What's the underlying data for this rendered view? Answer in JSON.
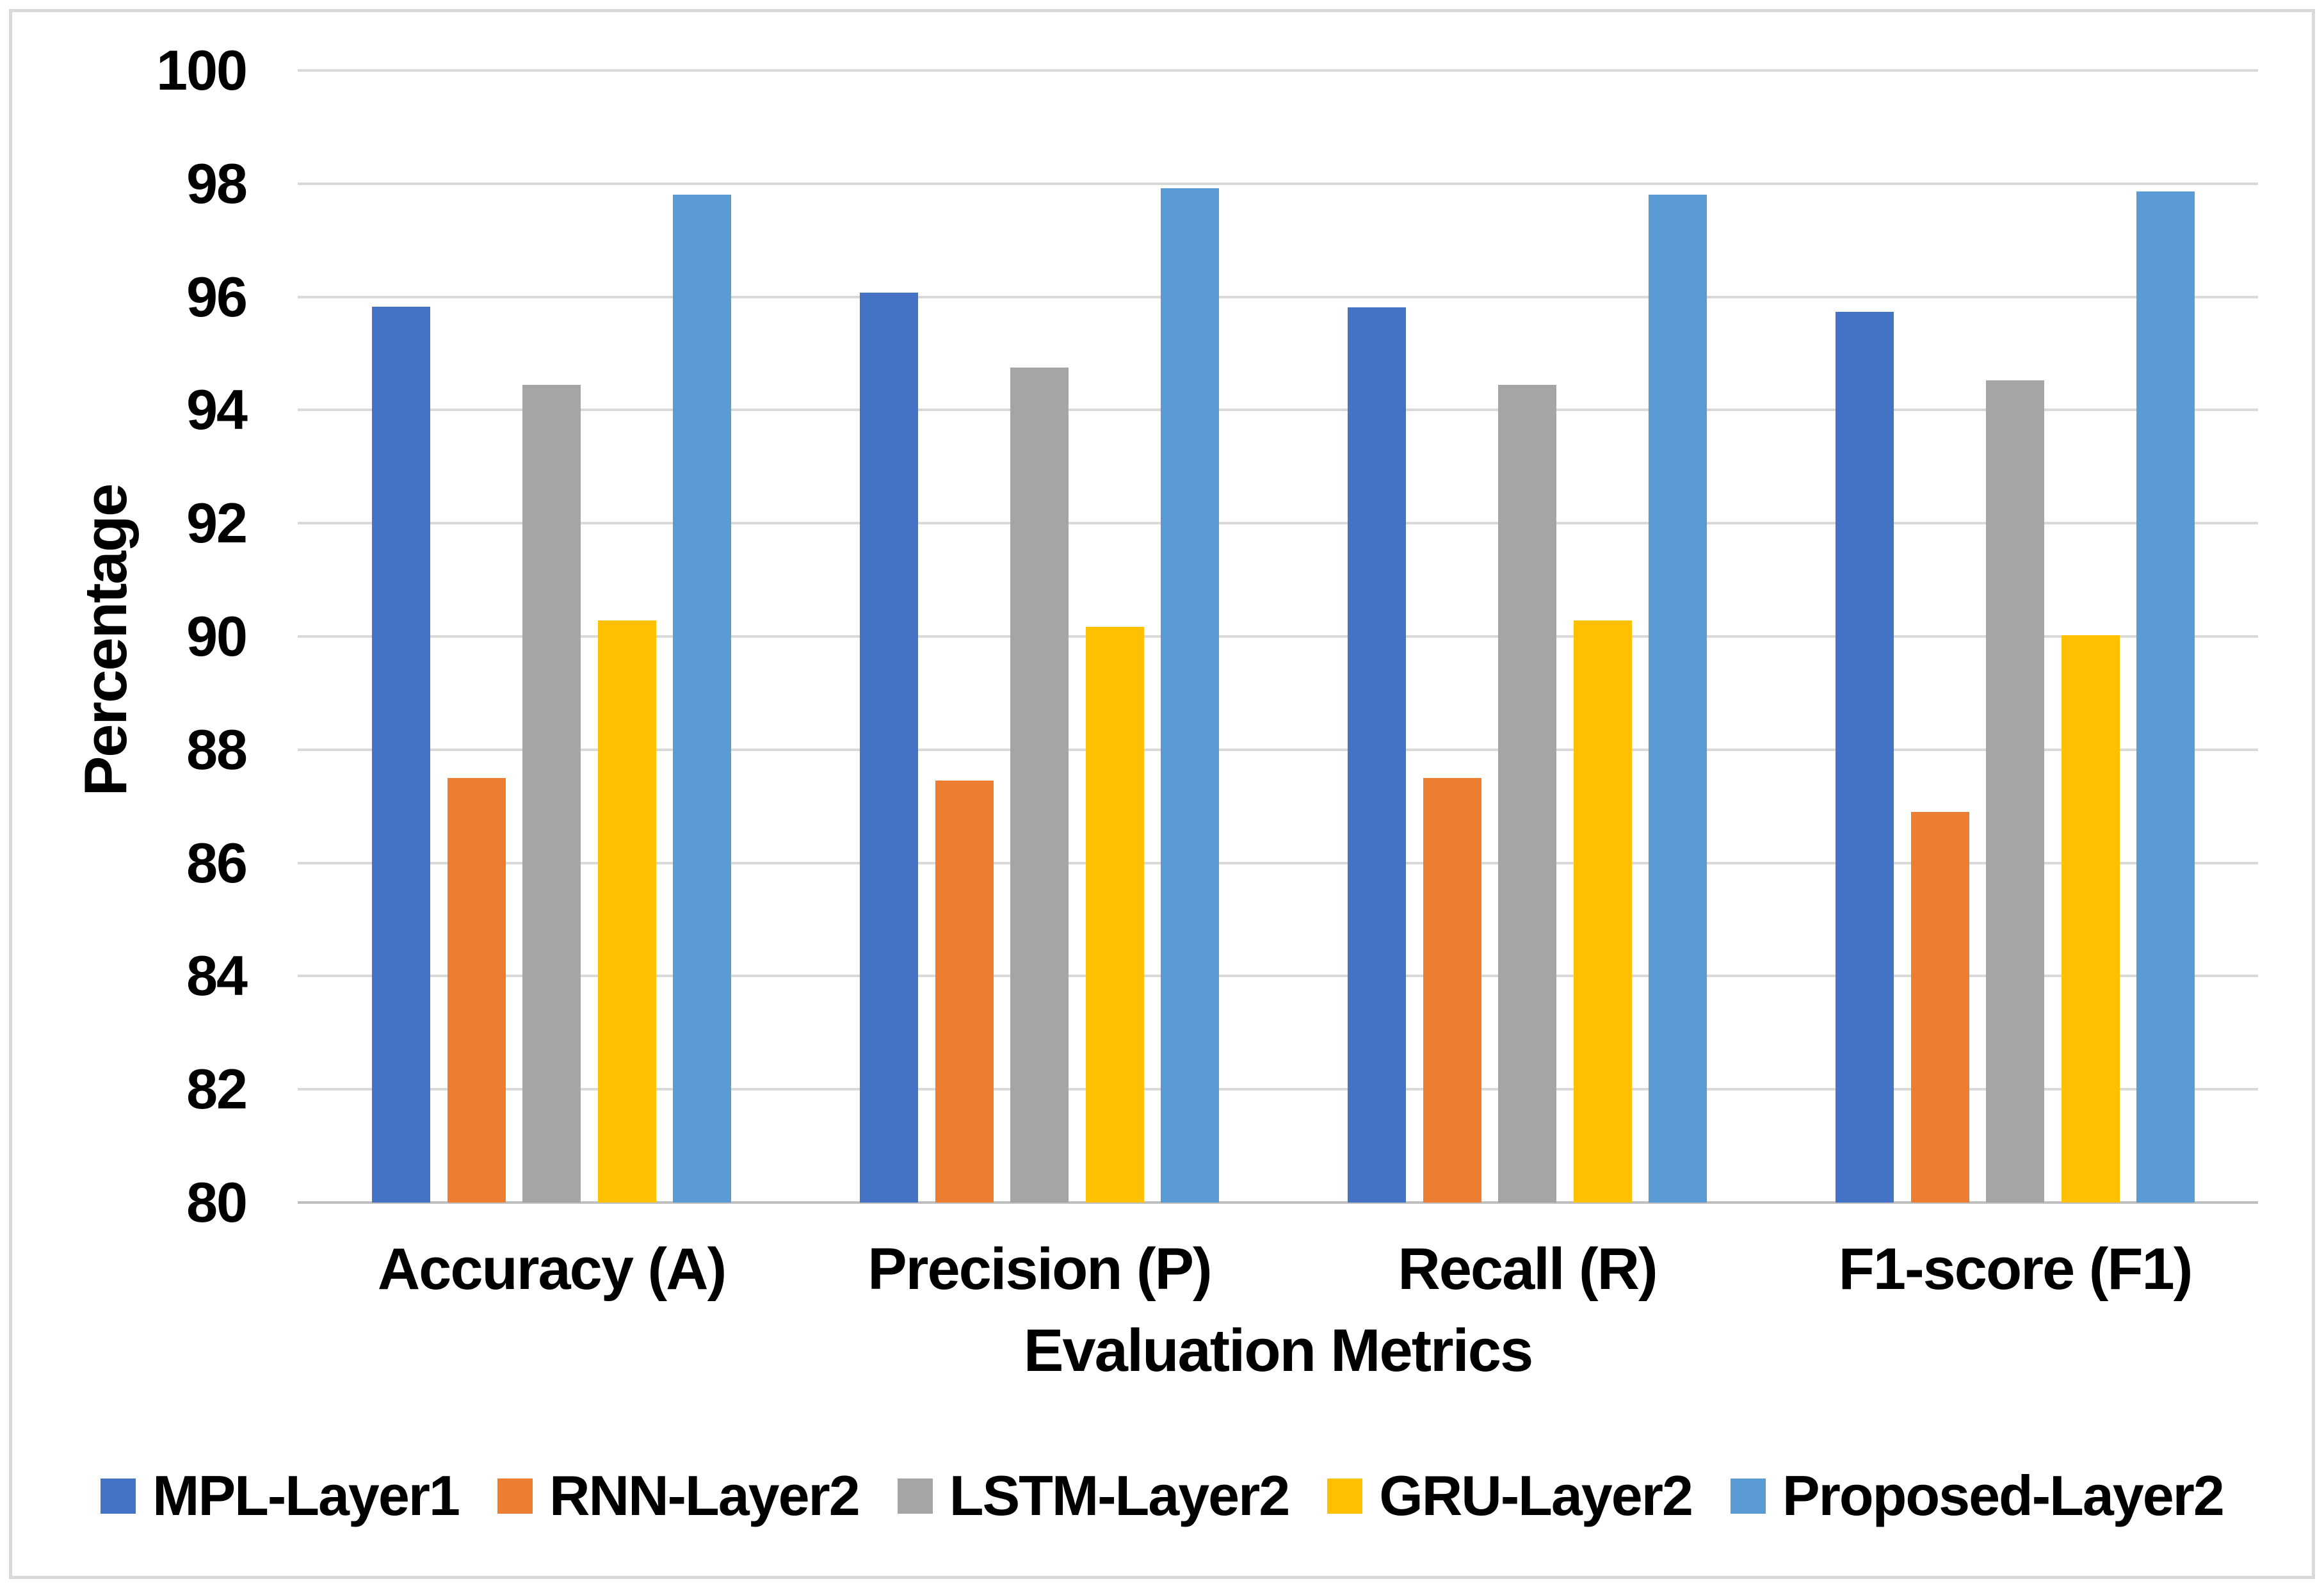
{
  "chart_data": {
    "type": "bar",
    "title": "",
    "categories": [
      "Accuracy (A)",
      "Precision (P)",
      "Recall (R)",
      "F1-score (F1)"
    ],
    "series": [
      {
        "name": "MPL-Layer1",
        "color": "#4472C4",
        "values": [
          95.83,
          96.07,
          95.82,
          95.73
        ]
      },
      {
        "name": "RNN-Layer2",
        "color": "#ED7D31",
        "values": [
          87.5,
          87.45,
          87.5,
          86.9
        ]
      },
      {
        "name": "LSTM-Layer2",
        "color": "#A5A5A5",
        "values": [
          94.45,
          94.75,
          94.45,
          94.52
        ]
      },
      {
        "name": "GRU-Layer2",
        "color": "#FFC000",
        "values": [
          90.28,
          90.17,
          90.28,
          90.02
        ]
      },
      {
        "name": "Proposed-Layer2",
        "color": "#5B9BD5",
        "values": [
          97.81,
          97.92,
          97.81,
          97.86
        ]
      }
    ],
    "xlabel": "Evaluation Metrics",
    "ylabel": "Percentage",
    "ylim": [
      80,
      100
    ],
    "yticks": [
      80,
      82,
      84,
      86,
      88,
      90,
      92,
      94,
      96,
      98,
      100
    ],
    "grid": true,
    "legend_position": "bottom"
  },
  "colors": {
    "gridline": "#D9D9D9",
    "axis_line": "#BFBFBF",
    "frame_border": "#D9D9D9",
    "text": "#000000",
    "background": "#FFFFFF"
  }
}
